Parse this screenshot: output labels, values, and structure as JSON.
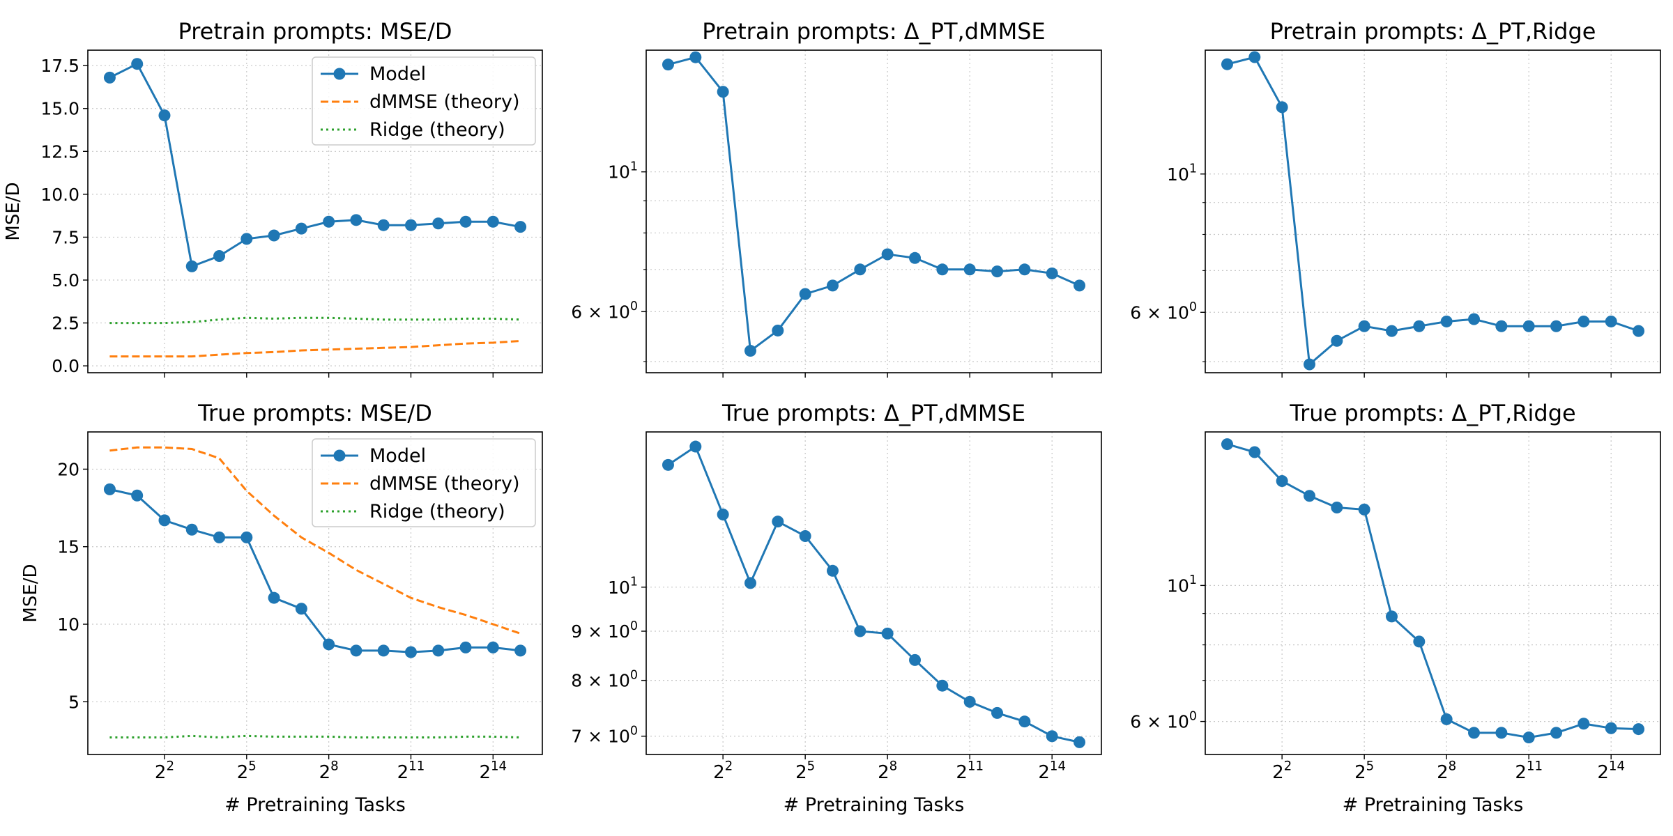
{
  "colors": {
    "model": "#1f77b4",
    "dmmse": "#ff7f0e",
    "ridge": "#2ca02c",
    "grid": "#b0b0b0"
  },
  "x_tick_labels": [
    {
      "base": "2",
      "exp": "2",
      "value": 2
    },
    {
      "base": "2",
      "exp": "5",
      "value": 5
    },
    {
      "base": "2",
      "exp": "8",
      "value": 8
    },
    {
      "base": "2",
      "exp": "11",
      "value": 11
    },
    {
      "base": "2",
      "exp": "14",
      "value": 14
    }
  ],
  "chart_data": [
    {
      "type": "line",
      "title": "Pretrain prompts: MSE/D",
      "xlabel": "",
      "ylabel": "MSE/D",
      "xscale": "log2",
      "yscale": "linear",
      "xlim": [
        -0.8,
        15.8
      ],
      "ylim": [
        -0.4,
        18.4
      ],
      "yticks": [
        {
          "value": 0.0,
          "label": "0.0"
        },
        {
          "value": 2.5,
          "label": "2.5"
        },
        {
          "value": 5.0,
          "label": "5.0"
        },
        {
          "value": 7.5,
          "label": "7.5"
        },
        {
          "value": 10.0,
          "label": "10.0"
        },
        {
          "value": 12.5,
          "label": "12.5"
        },
        {
          "value": 15.0,
          "label": "15.0"
        },
        {
          "value": 17.5,
          "label": "17.5"
        }
      ],
      "grid": true,
      "legend": "top-right",
      "series": [
        {
          "name": "Model",
          "style": "line-marker",
          "x": [
            0,
            1,
            2,
            3,
            4,
            5,
            6,
            7,
            8,
            9,
            10,
            11,
            12,
            13,
            14,
            15
          ],
          "values": [
            16.8,
            17.6,
            14.6,
            5.8,
            6.4,
            7.4,
            7.6,
            8.0,
            8.4,
            8.5,
            8.2,
            8.2,
            8.3,
            8.4,
            8.4,
            8.1
          ]
        },
        {
          "name": "dMMSE (theory)",
          "style": "dashed",
          "x": [
            0,
            1,
            2,
            3,
            4,
            5,
            6,
            7,
            8,
            9,
            10,
            11,
            12,
            13,
            14,
            15
          ],
          "values": [
            0.55,
            0.55,
            0.55,
            0.55,
            0.65,
            0.75,
            0.8,
            0.9,
            0.95,
            1.0,
            1.05,
            1.1,
            1.2,
            1.3,
            1.35,
            1.45
          ]
        },
        {
          "name": "Ridge (theory)",
          "style": "dotted",
          "x": [
            0,
            1,
            2,
            3,
            4,
            5,
            6,
            7,
            8,
            9,
            10,
            11,
            12,
            13,
            14,
            15
          ],
          "values": [
            2.5,
            2.5,
            2.5,
            2.55,
            2.7,
            2.8,
            2.75,
            2.8,
            2.8,
            2.75,
            2.7,
            2.7,
            2.7,
            2.75,
            2.75,
            2.7
          ]
        }
      ]
    },
    {
      "type": "line",
      "title": "Pretrain prompts: Δ_PT,dMMSE",
      "xlabel": "",
      "ylabel": "",
      "xscale": "log2",
      "yscale": "log",
      "xlim": [
        -0.8,
        15.8
      ],
      "ylim": [
        4.8,
        15.6
      ],
      "yticks": [
        {
          "value": 6,
          "base": "6 × 10",
          "exp": "0"
        },
        {
          "value": 10,
          "base": "10",
          "exp": "1"
        }
      ],
      "yminor": [
        5,
        7,
        8,
        9
      ],
      "grid": true,
      "legend": "none",
      "series": [
        {
          "name": "",
          "style": "line-marker",
          "x": [
            0,
            1,
            2,
            3,
            4,
            5,
            6,
            7,
            8,
            9,
            10,
            11,
            12,
            13,
            14,
            15
          ],
          "values": [
            14.8,
            15.2,
            13.4,
            5.2,
            5.6,
            6.4,
            6.6,
            7.0,
            7.4,
            7.3,
            7.0,
            7.0,
            6.95,
            7.0,
            6.9,
            6.6
          ]
        }
      ]
    },
    {
      "type": "line",
      "title": "Pretrain prompts: Δ_PT,Ridge",
      "xlabel": "",
      "ylabel": "",
      "xscale": "log2",
      "yscale": "log",
      "xlim": [
        -0.8,
        15.8
      ],
      "ylim": [
        4.8,
        15.8
      ],
      "yticks": [
        {
          "value": 6,
          "base": "6 × 10",
          "exp": "0"
        },
        {
          "value": 10,
          "base": "10",
          "exp": "1"
        }
      ],
      "yminor": [
        5,
        7,
        8,
        9
      ],
      "grid": true,
      "legend": "none",
      "series": [
        {
          "name": "",
          "style": "line-marker",
          "x": [
            0,
            1,
            2,
            3,
            4,
            5,
            6,
            7,
            8,
            9,
            10,
            11,
            12,
            13,
            14,
            15
          ],
          "values": [
            15.0,
            15.4,
            12.8,
            4.95,
            5.4,
            5.7,
            5.6,
            5.7,
            5.8,
            5.85,
            5.7,
            5.7,
            5.7,
            5.8,
            5.8,
            5.6
          ]
        }
      ]
    },
    {
      "type": "line",
      "title": "True prompts: MSE/D",
      "xlabel": "# Pretraining Tasks",
      "ylabel": "MSE/D",
      "xscale": "log2",
      "yscale": "linear",
      "xlim": [
        -0.8,
        15.8
      ],
      "ylim": [
        1.6,
        22.4
      ],
      "yticks": [
        {
          "value": 5,
          "label": "5"
        },
        {
          "value": 10,
          "label": "10"
        },
        {
          "value": 15,
          "label": "15"
        },
        {
          "value": 20,
          "label": "20"
        }
      ],
      "grid": true,
      "legend": "top-right",
      "series": [
        {
          "name": "Model",
          "style": "line-marker",
          "x": [
            0,
            1,
            2,
            3,
            4,
            5,
            6,
            7,
            8,
            9,
            10,
            11,
            12,
            13,
            14,
            15
          ],
          "values": [
            18.7,
            18.3,
            16.7,
            16.1,
            15.6,
            15.6,
            11.7,
            11.0,
            8.7,
            8.3,
            8.3,
            8.2,
            8.3,
            8.5,
            8.5,
            8.3
          ]
        },
        {
          "name": "dMMSE (theory)",
          "style": "dashed",
          "x": [
            0,
            1,
            2,
            3,
            4,
            5,
            6,
            7,
            8,
            9,
            10,
            11,
            12,
            13,
            14,
            15
          ],
          "values": [
            21.2,
            21.4,
            21.4,
            21.3,
            20.7,
            18.6,
            17.0,
            15.6,
            14.6,
            13.5,
            12.6,
            11.7,
            11.1,
            10.6,
            10.0,
            9.4
          ]
        },
        {
          "name": "Ridge (theory)",
          "style": "dotted",
          "x": [
            0,
            1,
            2,
            3,
            4,
            5,
            6,
            7,
            8,
            9,
            10,
            11,
            12,
            13,
            14,
            15
          ],
          "values": [
            2.7,
            2.7,
            2.7,
            2.8,
            2.7,
            2.8,
            2.75,
            2.75,
            2.75,
            2.7,
            2.7,
            2.7,
            2.7,
            2.75,
            2.75,
            2.7
          ]
        }
      ]
    },
    {
      "type": "line",
      "title": "True prompts: Δ_PT,dMMSE",
      "xlabel": "# Pretraining Tasks",
      "ylabel": "",
      "xscale": "log2",
      "yscale": "log",
      "xlim": [
        -0.8,
        15.8
      ],
      "ylim": [
        6.7,
        14.5
      ],
      "yticks": [
        {
          "value": 7,
          "base": "7 × 10",
          "exp": "0"
        },
        {
          "value": 8,
          "base": "8 × 10",
          "exp": "0"
        },
        {
          "value": 9,
          "base": "9 × 10",
          "exp": "0"
        },
        {
          "value": 10,
          "base": "10",
          "exp": "1"
        }
      ],
      "yminor": [],
      "grid": true,
      "legend": "none",
      "series": [
        {
          "name": "",
          "style": "line-marker",
          "x": [
            0,
            1,
            2,
            3,
            4,
            5,
            6,
            7,
            8,
            9,
            10,
            11,
            12,
            13,
            14,
            15
          ],
          "values": [
            13.4,
            14.0,
            11.9,
            10.1,
            11.7,
            11.3,
            10.4,
            9.0,
            8.95,
            8.4,
            7.9,
            7.6,
            7.4,
            7.25,
            7.0,
            6.9
          ]
        }
      ]
    },
    {
      "type": "line",
      "title": "True prompts: Δ_PT,Ridge",
      "xlabel": "# Pretraining Tasks",
      "ylabel": "",
      "xscale": "log2",
      "yscale": "log",
      "xlim": [
        -0.8,
        15.8
      ],
      "ylim": [
        5.3,
        17.8
      ],
      "yticks": [
        {
          "value": 6,
          "base": "6 × 10",
          "exp": "0"
        },
        {
          "value": 10,
          "base": "10",
          "exp": "1"
        }
      ],
      "yminor": [
        7,
        8,
        9
      ],
      "grid": true,
      "legend": "none",
      "series": [
        {
          "name": "",
          "style": "line-marker",
          "x": [
            0,
            1,
            2,
            3,
            4,
            5,
            6,
            7,
            8,
            9,
            10,
            11,
            12,
            13,
            14,
            15
          ],
          "values": [
            17.0,
            16.5,
            14.8,
            14.0,
            13.4,
            13.3,
            8.9,
            8.1,
            6.05,
            5.75,
            5.75,
            5.65,
            5.75,
            5.95,
            5.85,
            5.83
          ]
        }
      ]
    }
  ]
}
